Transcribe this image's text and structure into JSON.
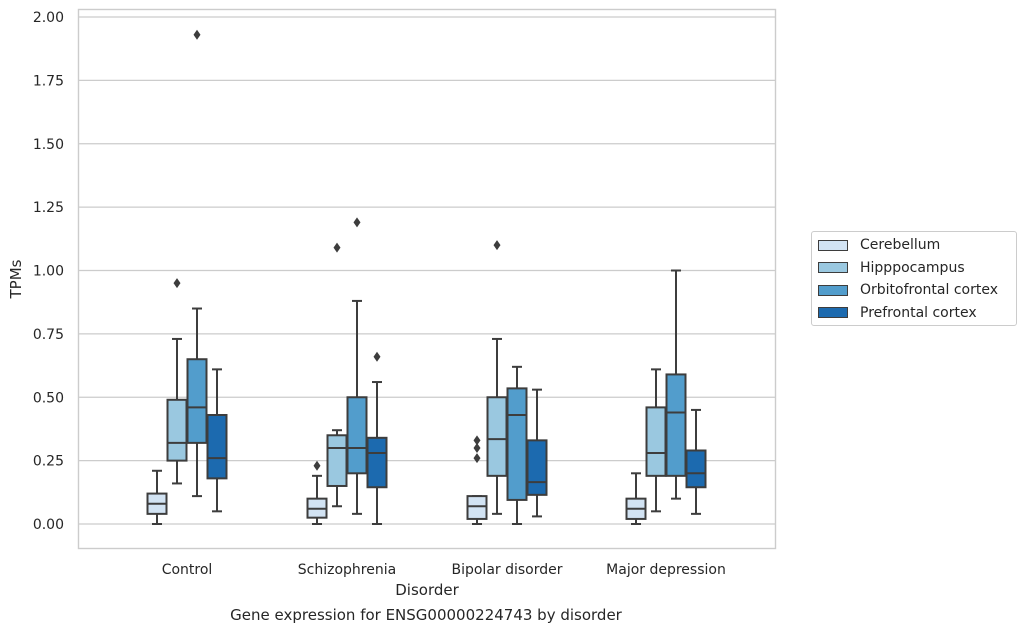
{
  "chart_data": {
    "type": "box",
    "xlabel": "Disorder",
    "ylabel": "TPMs",
    "caption": "Gene expression for ENSG00000224743 by disorder",
    "ylim": [
      -0.09,
      2.03
    ],
    "yticks": [
      "0.00",
      "0.25",
      "0.50",
      "0.75",
      "1.00",
      "1.25",
      "1.50",
      "1.75",
      "2.00"
    ],
    "grid": "horizontal",
    "legend_position": "right",
    "categories": [
      "Control",
      "Schizophrenia",
      "Bipolar disorder",
      "Major depression"
    ],
    "series": [
      {
        "name": "Cerebellum",
        "color": "#d2e3f3",
        "boxes": [
          {
            "min": 0.0,
            "q1": 0.04,
            "median": 0.08,
            "q3": 0.12,
            "max": 0.21,
            "outliers": []
          },
          {
            "min": 0.0,
            "q1": 0.025,
            "median": 0.06,
            "q3": 0.1,
            "max": 0.19,
            "outliers": [
              0.23
            ]
          },
          {
            "min": 0.0,
            "q1": 0.02,
            "median": 0.07,
            "q3": 0.11,
            "max": 0.11,
            "outliers": [
              0.26,
              0.3,
              0.33
            ]
          },
          {
            "min": 0.0,
            "q1": 0.02,
            "median": 0.06,
            "q3": 0.1,
            "max": 0.2,
            "outliers": []
          }
        ]
      },
      {
        "name": "Hipppocampus",
        "color": "#9ac8e0",
        "boxes": [
          {
            "min": 0.16,
            "q1": 0.25,
            "median": 0.32,
            "q3": 0.49,
            "max": 0.73,
            "outliers": [
              0.95
            ]
          },
          {
            "min": 0.07,
            "q1": 0.15,
            "median": 0.3,
            "q3": 0.35,
            "max": 0.37,
            "outliers": [
              1.09
            ]
          },
          {
            "min": 0.04,
            "q1": 0.19,
            "median": 0.335,
            "q3": 0.5,
            "max": 0.73,
            "outliers": [
              1.1
            ]
          },
          {
            "min": 0.05,
            "q1": 0.19,
            "median": 0.28,
            "q3": 0.46,
            "max": 0.61,
            "outliers": []
          }
        ]
      },
      {
        "name": "Orbitofrontal cortex",
        "color": "#529dcc",
        "boxes": [
          {
            "min": 0.11,
            "q1": 0.32,
            "median": 0.46,
            "q3": 0.65,
            "max": 0.85,
            "outliers": [
              1.93
            ]
          },
          {
            "min": 0.04,
            "q1": 0.2,
            "median": 0.3,
            "q3": 0.5,
            "max": 0.88,
            "outliers": [
              1.19
            ]
          },
          {
            "min": 0.0,
            "q1": 0.095,
            "median": 0.43,
            "q3": 0.535,
            "max": 0.62,
            "outliers": []
          },
          {
            "min": 0.1,
            "q1": 0.19,
            "median": 0.44,
            "q3": 0.59,
            "max": 1.0,
            "outliers": []
          }
        ]
      },
      {
        "name": "Prefrontal cortex",
        "color": "#1c6aaf",
        "boxes": [
          {
            "min": 0.05,
            "q1": 0.18,
            "median": 0.26,
            "q3": 0.43,
            "max": 0.61,
            "outliers": []
          },
          {
            "min": 0.0,
            "q1": 0.145,
            "median": 0.28,
            "q3": 0.34,
            "max": 0.56,
            "outliers": [
              0.66
            ]
          },
          {
            "min": 0.03,
            "q1": 0.115,
            "median": 0.165,
            "q3": 0.33,
            "max": 0.53,
            "outliers": []
          },
          {
            "min": 0.04,
            "q1": 0.145,
            "median": 0.2,
            "q3": 0.29,
            "max": 0.45,
            "outliers": []
          }
        ]
      }
    ]
  }
}
